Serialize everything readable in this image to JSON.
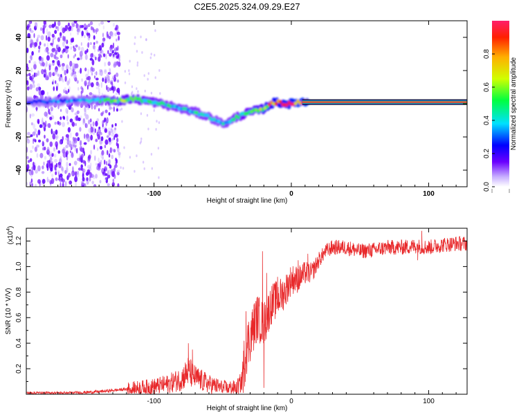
{
  "title": "C2E5.2025.324.09.29.E27",
  "chart_data": [
    {
      "type": "heatmap",
      "name": "spectrogram",
      "xlabel": "Height of straight line (km)",
      "ylabel": "Frequency (Hz)",
      "xlim": [
        -193,
        128
      ],
      "ylim": [
        -50,
        50
      ],
      "x_ticks": [
        "-100",
        "0",
        "100"
      ],
      "x_tick_values": [
        -100,
        0,
        100
      ],
      "y_ticks": [
        "-40",
        "-20",
        "0",
        "20",
        "40"
      ],
      "y_tick_values": [
        -40,
        -20,
        0,
        20,
        40
      ],
      "colorbar": {
        "label": "Normalized spectral amplitude",
        "range": [
          0,
          1
        ],
        "ticks": [
          "0.0",
          "0.2",
          "0.4",
          "0.6",
          "0.8"
        ],
        "tick_values": [
          0.0,
          0.2,
          0.4,
          0.6,
          0.8
        ]
      },
      "ridge": {
        "x": [
          -193,
          -150,
          -125,
          -115,
          -100,
          -85,
          -70,
          -60,
          -50,
          -45,
          -40,
          -30,
          -20,
          -15,
          -10,
          -5,
          0,
          5,
          10,
          20,
          40,
          60,
          80,
          100,
          128
        ],
        "frequency": [
          1,
          2,
          2,
          3,
          1,
          -2,
          -5,
          -8,
          -12,
          -11,
          -8,
          -5,
          -3,
          0,
          1,
          0,
          0,
          1,
          1,
          1,
          1,
          1,
          1,
          1,
          1
        ],
        "amplitude": [
          0.3,
          0.35,
          0.6,
          0.55,
          0.5,
          0.45,
          0.45,
          0.45,
          0.4,
          0.45,
          0.5,
          0.55,
          0.7,
          0.85,
          0.9,
          0.95,
          0.95,
          1.0,
          1.0,
          1.0,
          1.0,
          1.0,
          1.0,
          1.0,
          1.0
        ]
      },
      "noise_region": [
        -193,
        -125
      ]
    },
    {
      "type": "line",
      "name": "snr",
      "xlabel": "Height of straight line (km)",
      "ylabel": "SNR (10 * V/V)",
      "y_scale_label": "(x10",
      "y_scale_exp": "4",
      "xlim": [
        -193,
        128
      ],
      "ylim": [
        0,
        1.3
      ],
      "x_ticks": [
        "-100",
        "0",
        "100"
      ],
      "x_tick_values": [
        -100,
        0,
        100
      ],
      "y_ticks": [
        "0.2",
        "0.4",
        "0.6",
        "0.8",
        "1.0",
        "1.2"
      ],
      "y_tick_values": [
        0.2,
        0.4,
        0.6,
        0.8,
        1.0,
        1.2
      ],
      "series": [
        {
          "name": "SNR",
          "color": "#e8282a",
          "x": [
            -193,
            -160,
            -140,
            -120,
            -110,
            -100,
            -90,
            -80,
            -75,
            -70,
            -60,
            -50,
            -40,
            -36,
            -33,
            -30,
            -25,
            -20,
            -18,
            -15,
            -10,
            -5,
            0,
            5,
            10,
            15,
            20,
            25,
            30,
            40,
            50,
            60,
            70,
            80,
            90,
            100,
            110,
            120,
            128
          ],
          "y": [
            0.01,
            0.01,
            0.02,
            0.04,
            0.05,
            0.06,
            0.08,
            0.12,
            0.18,
            0.13,
            0.08,
            0.05,
            0.05,
            0.1,
            0.35,
            0.45,
            0.6,
            0.55,
            0.6,
            0.7,
            0.75,
            0.8,
            0.9,
            0.9,
            0.95,
            0.95,
            1.05,
            1.12,
            1.15,
            1.15,
            1.12,
            1.13,
            1.15,
            1.15,
            1.16,
            1.15,
            1.17,
            1.18,
            1.18
          ],
          "spikes": [
            [
              -75,
              0.4
            ],
            [
              -72,
              0.35
            ],
            [
              -33,
              0.65
            ],
            [
              -21,
              1.12
            ],
            [
              -20,
              0.05
            ],
            [
              -18,
              0.95
            ],
            [
              -10,
              0.92
            ],
            [
              5,
              1.05
            ],
            [
              12,
              1.1
            ],
            [
              95,
              1.28
            ],
            [
              92,
              1.05
            ]
          ]
        }
      ]
    }
  ],
  "colors": {
    "ridge_high": "#ff1f3a",
    "ridge_mid": "#20e060",
    "ridge_low": "#3020d0",
    "noise": "#b89af0",
    "snr_line": "#e8282a"
  }
}
